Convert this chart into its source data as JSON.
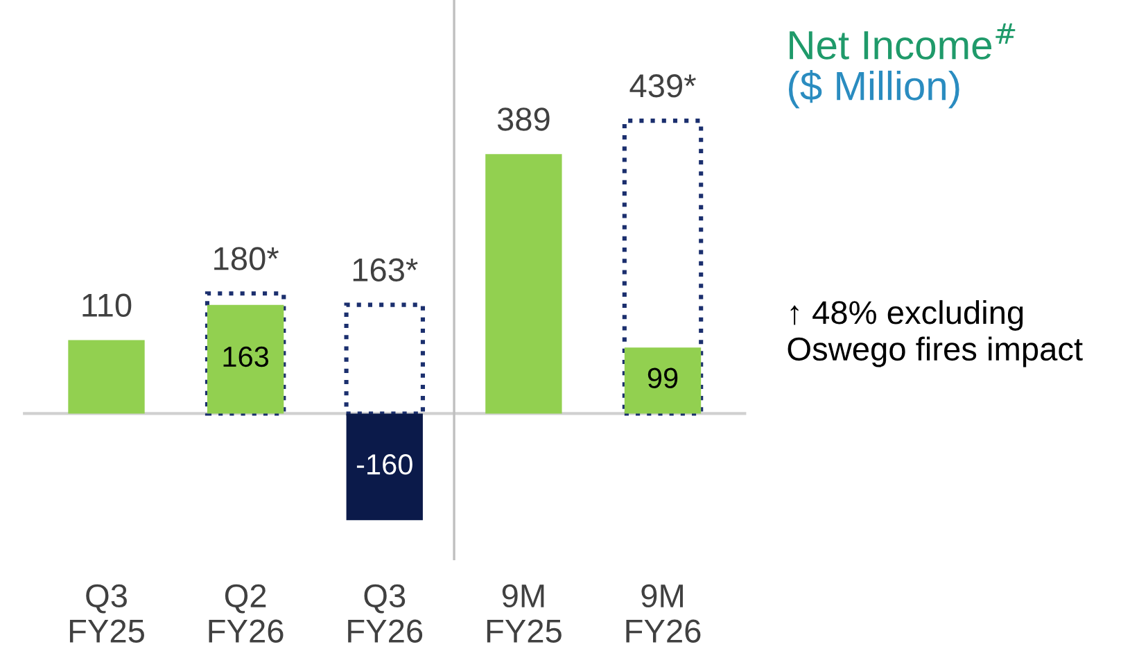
{
  "chart_data": {
    "type": "bar",
    "title": "Net Income$^{#}$",
    "subtitle": "($ Million)",
    "categories": [
      "Q3\nFY25",
      "Q2\nFY26",
      "Q3\nFY26",
      "9M\nFY25",
      "9M\nFY26"
    ],
    "series": [
      {
        "colors": [
          "#92d050",
          "#92d050",
          "#0b1a4a",
          "#92d050",
          "#92d050"
        ],
        "values": [
          110,
          163,
          -160,
          389,
          99
        ],
        "value_labels": [
          "110",
          "163",
          "-160",
          "389",
          "99"
        ]
      },
      {
        "color": "#1b2f6e",
        "line_style": "dotted",
        "values": [
          null,
          180,
          163,
          null,
          439
        ],
        "value_labels": [
          null,
          "180*",
          "163*",
          null,
          "439*"
        ]
      }
    ],
    "ylim": [
      -220,
      620
    ],
    "tick_labels": "x",
    "annotations": [
      "↑ 48% excluding\nOswego fires impact"
    ]
  }
}
